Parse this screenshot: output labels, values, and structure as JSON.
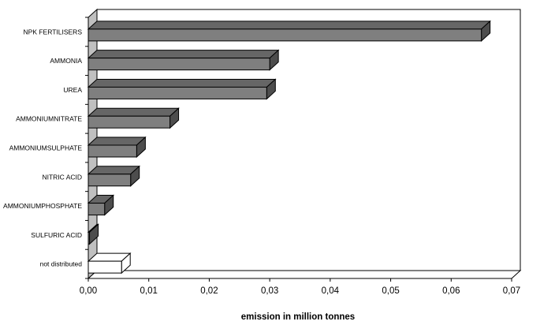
{
  "chart_data": {
    "type": "bar",
    "orientation": "horizontal",
    "three_d": true,
    "categories": [
      "NPK FERTILISERS",
      "AMMONIA",
      "UREA",
      "AMMONIUM NITRATE",
      "AMMONIUM SULPHATE",
      "NITRIC ACID",
      "AMMONIUM PHOSPHATE",
      "SULFURIC ACID",
      "not distributed"
    ],
    "category_labels": [
      "NPK FERTILISERS",
      "AMMONIA",
      "UREA",
      "AMMONIUMNITRATE",
      "AMMONIUMSULPHATE",
      "NITRIC ACID",
      "AMMONIUMPHOSPHATE",
      "SULFURIC ACID",
      "not distributed"
    ],
    "values": [
      0.065,
      0.03,
      0.0295,
      0.0135,
      0.008,
      0.007,
      0.0027,
      0.0002,
      0.0055
    ],
    "hollow_bars": [
      "not distributed"
    ],
    "xlabel": "emission in million tonnes",
    "ylabel": "",
    "title": "",
    "xlim": [
      0,
      0.07
    ],
    "xticks": [
      "0,00",
      "0,01",
      "0,02",
      "0,03",
      "0,04",
      "0,05",
      "0,06",
      "0,07"
    ],
    "grid": false,
    "legend": "none",
    "colors": {
      "bar_face": "#7f7f7f",
      "bar_top": "#666666",
      "bar_side": "#4d4d4d",
      "hollow_bar": "#ffffff",
      "back_wall": "#ffffff",
      "left_wall": "#c0c0c0",
      "outline": "#000000"
    }
  }
}
